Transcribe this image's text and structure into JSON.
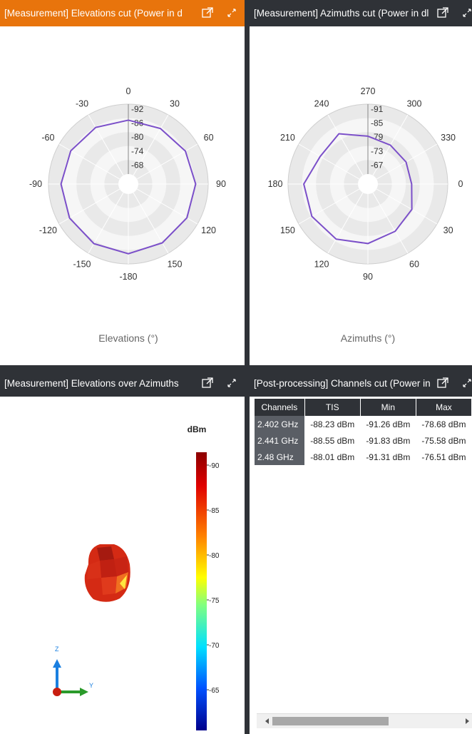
{
  "panels": [
    {
      "title": "[Measurement] Elevations cut (Power in d",
      "axis_label": "Elevations (°)"
    },
    {
      "title": "[Measurement] Azimuths cut (Power in dl",
      "axis_label": "Azimuths (°)"
    },
    {
      "title": "[Measurement] Elevations over Azimuths"
    },
    {
      "title": "[Post-processing] Channels cut (Power in"
    }
  ],
  "icons": {
    "popout": "external-window-icon",
    "maximize": "expand-arrows-icon"
  },
  "colors": {
    "active_header": "#e8740c",
    "header": "#2f3237",
    "trace": "#7b4fc9"
  },
  "chart_data": [
    {
      "type": "polar-line",
      "angle_labels": [
        "0",
        "30",
        "60",
        "90",
        "120",
        "150",
        "-180",
        "-150",
        "-120",
        "-90",
        "-60",
        "-30"
      ],
      "radial_labels": [
        "-92",
        "-86",
        "-80",
        "-74",
        "-68"
      ],
      "rlim": [
        -92,
        -68
      ],
      "xlabel": "Elevations (°)",
      "series": [
        {
          "angles": [
            0,
            30,
            60,
            90,
            120,
            150,
            180,
            210,
            240,
            270,
            300,
            330
          ],
          "values": [
            -86.5,
            -86.6,
            -87.2,
            -87.7,
            -87.8,
            -87.9,
            -88.5,
            -88.2,
            -87.9,
            -87.7,
            -87.4,
            -87.0
          ]
        }
      ]
    },
    {
      "type": "polar-line",
      "angle_labels": [
        "270",
        "300",
        "330",
        "0",
        "30",
        "60",
        "90",
        "120",
        "150",
        "180",
        "210",
        "240"
      ],
      "radial_labels": [
        "-91",
        "-85",
        "-79",
        "-73",
        "-67"
      ],
      "rlim": [
        -91,
        -67
      ],
      "xlabel": "Azimuths (°)",
      "series": [
        {
          "angles": [
            270,
            300,
            330,
            0,
            30,
            60,
            90,
            120,
            150,
            180,
            210,
            240
          ],
          "values": [
            -80.0,
            -79.0,
            -78.7,
            -78.6,
            -81.0,
            -82.3,
            -84.0,
            -85.4,
            -85.8,
            -85.6,
            -82.5,
            -83.5
          ]
        }
      ]
    },
    {
      "type": "heatmap",
      "colorbar_title": "dBm",
      "colorbar_ticks": [
        "-90",
        "-85",
        "-80",
        "-75",
        "-70",
        "-65"
      ],
      "axes": [
        "Z",
        "Y"
      ]
    },
    {
      "type": "table",
      "columns": [
        "Channels",
        "TIS",
        "Min",
        "Max"
      ],
      "rows": [
        [
          "2.402 GHz",
          "-88.23 dBm",
          "-91.26 dBm",
          "-78.68 dBm"
        ],
        [
          "2.441 GHz",
          "-88.55 dBm",
          "-91.83 dBm",
          "-75.58 dBm"
        ],
        [
          "2.48 GHz",
          "-88.01 dBm",
          "-91.31 dBm",
          "-76.51 dBm"
        ]
      ]
    }
  ]
}
